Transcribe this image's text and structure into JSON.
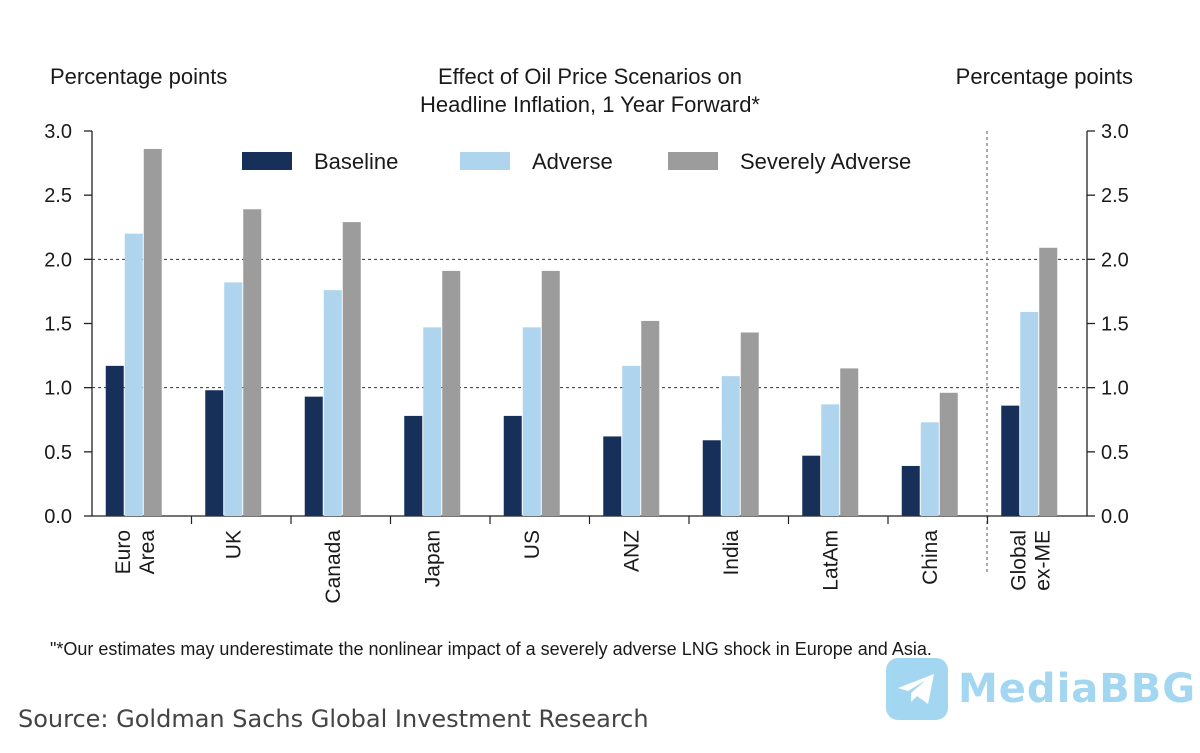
{
  "chart_data": {
    "type": "bar",
    "title": [
      "Effect of Oil Price Scenarios on",
      "Headline Inflation, 1 Year Forward*"
    ],
    "ylabel_left": "Percentage points",
    "ylabel_right": "Percentage points",
    "ylim": [
      0,
      3.0
    ],
    "yticks": [
      "0.0",
      "0.5",
      "1.0",
      "1.5",
      "2.0",
      "2.5",
      "3.0"
    ],
    "grid": "dashed at 1.0 and 2.0",
    "legend_position": "top",
    "categories": [
      [
        "Euro",
        "Area"
      ],
      [
        "UK"
      ],
      [
        "Canada"
      ],
      [
        "Japan"
      ],
      [
        "US"
      ],
      [
        "ANZ"
      ],
      [
        "India"
      ],
      [
        "LatAm"
      ],
      [
        "China"
      ],
      [
        "Global",
        "ex-ME"
      ]
    ],
    "series": [
      {
        "name": "Baseline",
        "color": "#17305a",
        "values": [
          1.17,
          0.98,
          0.93,
          0.78,
          0.78,
          0.62,
          0.59,
          0.47,
          0.39,
          0.86
        ]
      },
      {
        "name": "Adverse",
        "color": "#afd4ee",
        "values": [
          2.2,
          1.82,
          1.76,
          1.47,
          1.47,
          1.17,
          1.09,
          0.87,
          0.73,
          1.59
        ]
      },
      {
        "name": "Severely Adverse",
        "color": "#9c9c9c",
        "values": [
          2.86,
          2.39,
          2.29,
          1.91,
          1.91,
          1.52,
          1.43,
          1.15,
          0.96,
          2.09
        ]
      }
    ],
    "footnote": "\"*Our estimates may underestimate the nonlinear impact of a severely adverse LNG shock in Europe and Asia."
  },
  "source": "Source: Goldman Sachs Global Investment Research",
  "watermark": {
    "text": "MediaBBG",
    "icon": "telegram-icon"
  }
}
